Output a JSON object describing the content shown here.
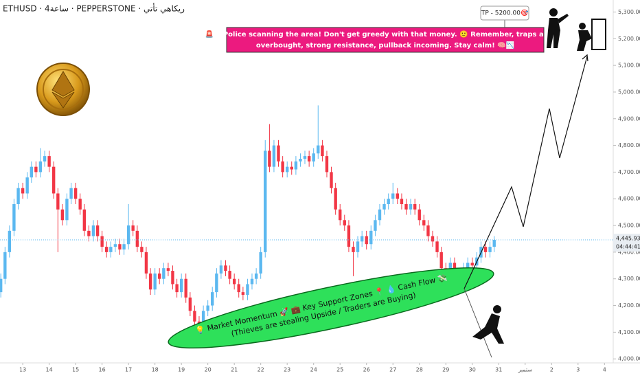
{
  "chart_data": {
    "type": "candlestick",
    "header": "ETHUSD · 4ساعة · PEPPERSTONE · ريكاهي تأتي",
    "up_color": "#5bb8f0",
    "down_color": "#f23645",
    "xlim": [
      12.14,
      35.33
    ],
    "ylim": [
      3985,
      5345
    ],
    "xticks": [
      13,
      14,
      15,
      16,
      17,
      18,
      19,
      20,
      21,
      22,
      23,
      24,
      25,
      26,
      27,
      28,
      29,
      30,
      31,
      {
        "value": 32,
        "label": "ستمبر"
      },
      {
        "value": 33,
        "label": "2"
      },
      {
        "value": 34,
        "label": "3"
      },
      {
        "value": 35,
        "label": "4"
      }
    ],
    "yticks": [
      {
        "value": 4000,
        "label": "4,000.00"
      },
      {
        "value": 4100,
        "label": "4,100.00"
      },
      {
        "value": 4200,
        "label": "4,200.00"
      },
      {
        "value": 4300,
        "label": "4,300.00"
      },
      {
        "value": 4400,
        "label": "4,400.00"
      },
      {
        "value": 4500,
        "label": "4,500.00"
      },
      {
        "value": 4600,
        "label": "4,600.00"
      },
      {
        "value": 4700,
        "label": "4,700.00"
      },
      {
        "value": 4800,
        "label": "4,800.00"
      },
      {
        "value": 4900,
        "label": "4,900.00"
      },
      {
        "value": 5000,
        "label": "5,000.00"
      },
      {
        "value": 5100,
        "label": "5,100.00"
      },
      {
        "value": 5200,
        "label": "5,200.00"
      },
      {
        "value": 5300,
        "label": "5,300.00"
      }
    ],
    "last_price": {
      "value": 4445.93,
      "label": "4,445.93"
    },
    "countdown": "04:44:41",
    "tp_label": "TP - 5200.00🎯",
    "banner": [
      "🚨😎 Police scanning the area! Don't get greedy with that money. 🙂 Remember, traps ahead:",
      "overbought, strong resistance, pullback incoming. Stay calm! 🧠📉"
    ],
    "zone_text": [
      "💡 Market Momentum 🚀 💼 Key Support Zones 📍 💧 Cash Flow 💸",
      "(Thieves are stealing Upside / Traders are Buying)"
    ],
    "x": [
      12.17,
      12.33,
      12.5,
      12.67,
      12.83,
      13,
      13.17,
      13.33,
      13.5,
      13.67,
      13.83,
      14,
      14.17,
      14.33,
      14.5,
      14.67,
      14.83,
      15,
      15.17,
      15.33,
      15.5,
      15.67,
      15.83,
      16,
      16.17,
      16.33,
      16.5,
      16.67,
      16.83,
      17,
      17.17,
      17.33,
      17.5,
      17.67,
      17.83,
      18,
      18.17,
      18.33,
      18.5,
      18.67,
      18.83,
      19,
      19.17,
      19.33,
      19.5,
      19.67,
      19.83,
      20,
      20.17,
      20.33,
      20.5,
      20.67,
      20.83,
      21,
      21.17,
      21.33,
      21.5,
      21.67,
      21.83,
      22,
      22.17,
      22.33,
      22.5,
      22.67,
      22.83,
      23,
      23.17,
      23.33,
      23.5,
      23.67,
      23.83,
      24,
      24.17,
      24.33,
      24.5,
      24.67,
      24.83,
      25,
      25.17,
      25.33,
      25.5,
      25.67,
      25.83,
      26,
      26.17,
      26.33,
      26.5,
      26.67,
      26.83,
      27,
      27.17,
      27.33,
      27.5,
      27.67,
      27.83,
      28,
      28.17,
      28.33,
      28.5,
      28.67,
      28.83,
      29,
      29.17,
      29.33,
      29.5,
      29.67,
      29.83,
      30,
      30.17,
      30.33,
      30.5,
      30.67,
      30.83
    ],
    "open": [
      4250,
      4300,
      4400,
      4480,
      4580,
      4640,
      4620,
      4680,
      4720,
      4700,
      4740,
      4760,
      4720,
      4620,
      4560,
      4520,
      4600,
      4640,
      4600,
      4560,
      4480,
      4460,
      4500,
      4460,
      4420,
      4400,
      4420,
      4430,
      4410,
      4430,
      4500,
      4480,
      4420,
      4400,
      4320,
      4260,
      4320,
      4300,
      4340,
      4330,
      4280,
      4250,
      4300,
      4230,
      4180,
      4140,
      4120,
      4180,
      4200,
      4250,
      4320,
      4350,
      4330,
      4300,
      4280,
      4250,
      4240,
      4280,
      4300,
      4320,
      4400,
      4780,
      4720,
      4800,
      4740,
      4700,
      4720,
      4710,
      4740,
      4750,
      4760,
      4740,
      4770,
      4800,
      4760,
      4700,
      4640,
      4560,
      4520,
      4500,
      4420,
      4400,
      4440,
      4460,
      4430,
      4480,
      4520,
      4560,
      4580,
      4600,
      4620,
      4600,
      4580,
      4560,
      4580,
      4560,
      4520,
      4500,
      4460,
      4440,
      4400,
      4340,
      4320,
      4360,
      4300,
      4290,
      4340,
      4360,
      4350,
      4380,
      4420,
      4400,
      4420
    ],
    "high": [
      4320,
      4420,
      4500,
      4600,
      4660,
      4660,
      4700,
      4740,
      4740,
      4790,
      4780,
      4780,
      4740,
      4640,
      4580,
      4620,
      4660,
      4660,
      4620,
      4580,
      4500,
      4520,
      4520,
      4480,
      4440,
      4440,
      4450,
      4450,
      4450,
      4580,
      4520,
      4500,
      4440,
      4420,
      4340,
      4340,
      4340,
      4360,
      4360,
      4350,
      4300,
      4320,
      4320,
      4250,
      4200,
      4160,
      4200,
      4220,
      4270,
      4340,
      4370,
      4370,
      4350,
      4320,
      4300,
      4270,
      4300,
      4320,
      4340,
      4420,
      4820,
      4880,
      4820,
      4820,
      4760,
      4740,
      4740,
      4760,
      4770,
      4780,
      4780,
      4790,
      4950,
      4820,
      4780,
      4720,
      4660,
      4580,
      4540,
      4520,
      4440,
      4460,
      4480,
      4480,
      4500,
      4540,
      4580,
      4600,
      4620,
      4660,
      4640,
      4620,
      4600,
      4600,
      4600,
      4580,
      4540,
      4520,
      4480,
      4460,
      4420,
      4360,
      4380,
      4380,
      4320,
      4360,
      4380,
      4380,
      4400,
      4440,
      4440,
      4440,
      4460
    ],
    "low": [
      4230,
      4280,
      4380,
      4460,
      4560,
      4600,
      4600,
      4660,
      4680,
      4680,
      4720,
      4700,
      4600,
      4400,
      4500,
      4500,
      4580,
      4580,
      4540,
      4460,
      4440,
      4440,
      4440,
      4400,
      4380,
      4380,
      4400,
      4390,
      4390,
      4410,
      4460,
      4400,
      4380,
      4300,
      4240,
      4240,
      4280,
      4280,
      4310,
      4260,
      4230,
      4230,
      4210,
      4160,
      4120,
      4090,
      4100,
      4160,
      4180,
      4230,
      4300,
      4310,
      4280,
      4260,
      4230,
      4220,
      4220,
      4260,
      4280,
      4300,
      4380,
      4700,
      4700,
      4720,
      4680,
      4680,
      4690,
      4690,
      4720,
      4730,
      4720,
      4720,
      4750,
      4740,
      4680,
      4620,
      4540,
      4500,
      4480,
      4400,
      4310,
      4380,
      4420,
      4410,
      4410,
      4460,
      4500,
      4540,
      4560,
      4580,
      4580,
      4560,
      4540,
      4540,
      4540,
      4500,
      4480,
      4440,
      4420,
      4380,
      4320,
      4300,
      4300,
      4280,
      4260,
      4270,
      4320,
      4330,
      4330,
      4360,
      4380,
      4380,
      4400
    ],
    "close": [
      4300,
      4400,
      4480,
      4580,
      4640,
      4620,
      4680,
      4720,
      4700,
      4740,
      4760,
      4720,
      4620,
      4560,
      4520,
      4600,
      4640,
      4600,
      4560,
      4480,
      4460,
      4500,
      4460,
      4420,
      4400,
      4420,
      4430,
      4410,
      4430,
      4500,
      4480,
      4420,
      4400,
      4320,
      4260,
      4320,
      4300,
      4340,
      4330,
      4280,
      4250,
      4300,
      4230,
      4180,
      4140,
      4120,
      4180,
      4200,
      4250,
      4320,
      4350,
      4330,
      4300,
      4280,
      4250,
      4240,
      4280,
      4300,
      4320,
      4400,
      4780,
      4720,
      4800,
      4740,
      4700,
      4720,
      4710,
      4740,
      4750,
      4760,
      4740,
      4770,
      4800,
      4760,
      4700,
      4640,
      4560,
      4520,
      4500,
      4420,
      4400,
      4440,
      4460,
      4430,
      4480,
      4520,
      4560,
      4580,
      4600,
      4620,
      4600,
      4580,
      4560,
      4580,
      4560,
      4520,
      4500,
      4460,
      4440,
      4400,
      4340,
      4320,
      4360,
      4300,
      4290,
      4340,
      4360,
      4350,
      4380,
      4420,
      4400,
      4420,
      4445.93
    ]
  }
}
